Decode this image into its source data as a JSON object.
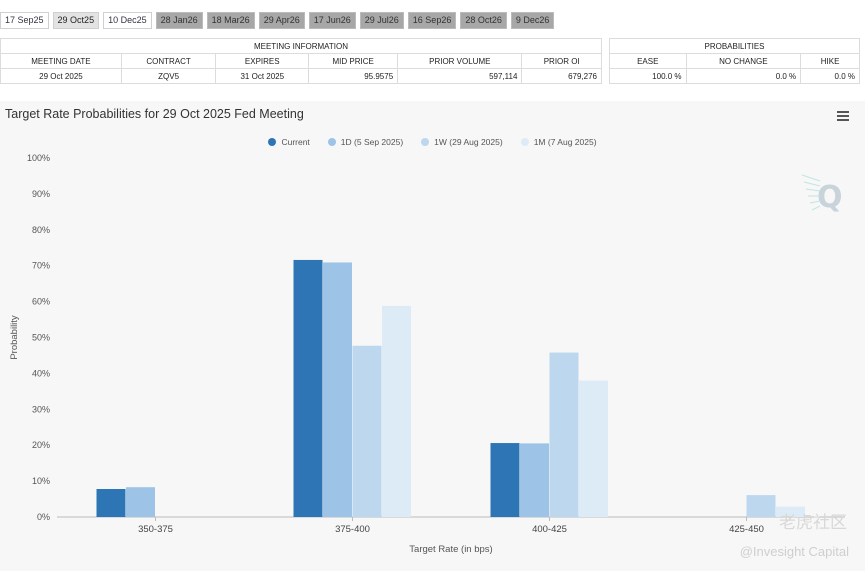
{
  "tabs": [
    {
      "label": "17 Sep25",
      "style": "light"
    },
    {
      "label": "29 Oct25",
      "style": "selected"
    },
    {
      "label": "10 Dec25",
      "style": "light"
    },
    {
      "label": "28 Jan26",
      "style": "dark"
    },
    {
      "label": "18 Mar26",
      "style": "dark"
    },
    {
      "label": "29 Apr26",
      "style": "dark"
    },
    {
      "label": "17 Jun26",
      "style": "dark"
    },
    {
      "label": "29 Jul26",
      "style": "dark"
    },
    {
      "label": "16 Sep26",
      "style": "dark"
    },
    {
      "label": "28 Oct26",
      "style": "dark"
    },
    {
      "label": "9 Dec26",
      "style": "dark"
    }
  ],
  "meeting_info": {
    "header": "MEETING INFORMATION",
    "columns": [
      "MEETING DATE",
      "CONTRACT",
      "EXPIRES",
      "MID PRICE",
      "PRIOR VOLUME",
      "PRIOR OI"
    ],
    "row": [
      "29 Oct 2025",
      "ZQV5",
      "31 Oct 2025",
      "95.9575",
      "597,114",
      "679,276"
    ]
  },
  "probabilities": {
    "header": "PROBABILITIES",
    "columns": [
      "EASE",
      "NO CHANGE",
      "HIKE"
    ],
    "row": [
      "100.0 %",
      "0.0 %",
      "0.0 %"
    ]
  },
  "chart_data": {
    "type": "bar",
    "title": "Target Rate Probabilities for 29 Oct 2025 Fed Meeting",
    "xlabel": "Target Rate (in bps)",
    "ylabel": "Probability",
    "categories": [
      "350-375",
      "375-400",
      "400-425",
      "425-450"
    ],
    "series": [
      {
        "name": "Current",
        "color": "#2e75b6",
        "values": [
          7.8,
          71.6,
          20.6,
          0
        ]
      },
      {
        "name": "1D (5 Sep 2025)",
        "color": "#9dc3e6",
        "values": [
          8.3,
          70.9,
          20.5,
          0
        ]
      },
      {
        "name": "1W (29 Aug 2025)",
        "color": "#bdd7ee",
        "values": [
          0,
          47.7,
          45.8,
          6.1
        ]
      },
      {
        "name": "1M (7 Aug 2025)",
        "color": "#ddebf7",
        "values": [
          0,
          58.8,
          38.0,
          2.9
        ]
      }
    ],
    "ylim": [
      0,
      100
    ],
    "yticks": [
      "0%",
      "10%",
      "20%",
      "30%",
      "40%",
      "50%",
      "60%",
      "70%",
      "80%",
      "90%",
      "100%"
    ],
    "legend_position": "top-center",
    "grid": false
  },
  "watermark": {
    "line1": "老虎社区",
    "line2": "@Invesight Capital"
  }
}
